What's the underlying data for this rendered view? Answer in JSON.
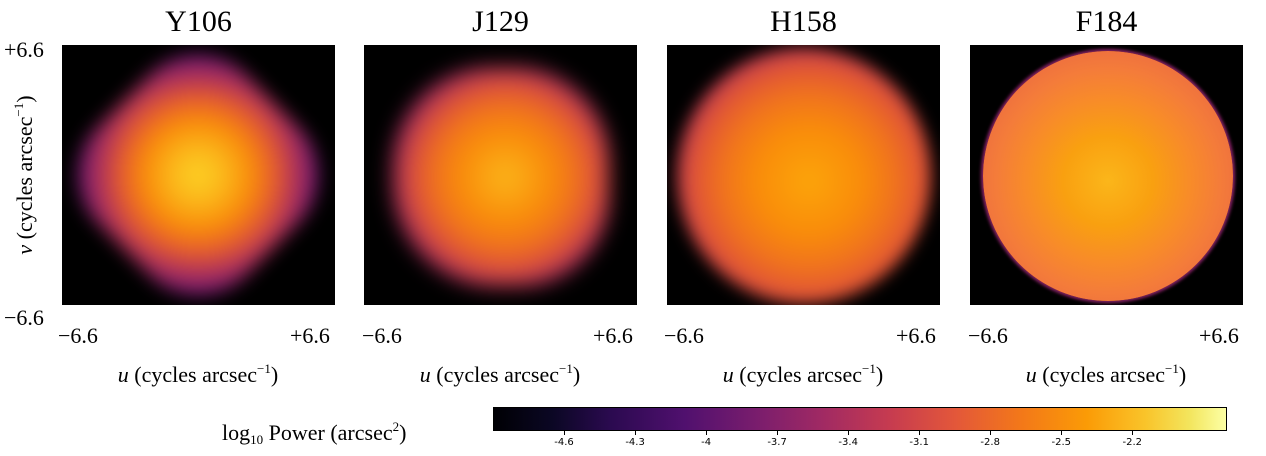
{
  "figure": {
    "y_axis": {
      "label_var": "v",
      "label_rest": " (cycles arcsec",
      "label_exp": "−1",
      "label_close": ")",
      "top_tick": "+6.6",
      "bottom_tick": "−6.6"
    },
    "colorbar": {
      "label_pre": "log",
      "label_sub": "10",
      "label_mid": " Power (arcsec",
      "label_sup": "2",
      "label_close": ")",
      "colormap": "inferno",
      "range": [
        -4.9,
        -1.8
      ],
      "ticks": [
        "-4.6",
        "-4.3",
        "-4",
        "-3.7",
        "-3.4",
        "-3.1",
        "-2.8",
        "-2.5",
        "-2.2"
      ]
    }
  },
  "chart_data": [
    {
      "type": "heatmap",
      "title": "Y106",
      "x_range": [
        -6.6,
        6.6
      ],
      "y_range": [
        -6.6,
        6.6
      ],
      "xticks": [
        "−6.6",
        "+6.6"
      ],
      "yticks": [
        "+6.6",
        "−6.6"
      ],
      "xlabel": {
        "var": "u",
        "rest": " (cycles arcsec",
        "exp": "−1",
        "close": ")"
      }
    },
    {
      "type": "heatmap",
      "title": "J129",
      "x_range": [
        -6.6,
        6.6
      ],
      "y_range": [
        -6.6,
        6.6
      ],
      "xticks": [
        "−6.6",
        "+6.6"
      ],
      "xlabel": {
        "var": "u",
        "rest": " (cycles arcsec",
        "exp": "−1",
        "close": ")"
      }
    },
    {
      "type": "heatmap",
      "title": "H158",
      "x_range": [
        -6.6,
        6.6
      ],
      "y_range": [
        -6.6,
        6.6
      ],
      "xticks": [
        "−6.6",
        "+6.6"
      ],
      "xlabel": {
        "var": "u",
        "rest": " (cycles arcsec",
        "exp": "−1",
        "close": ")"
      }
    },
    {
      "type": "heatmap",
      "title": "F184",
      "x_range": [
        -6.6,
        6.6
      ],
      "y_range": [
        -6.6,
        6.6
      ],
      "xticks": [
        "−6.6",
        "+6.6"
      ],
      "xlabel": {
        "var": "u",
        "rest": " (cycles arcsec",
        "exp": "−1",
        "close": ")"
      }
    }
  ]
}
